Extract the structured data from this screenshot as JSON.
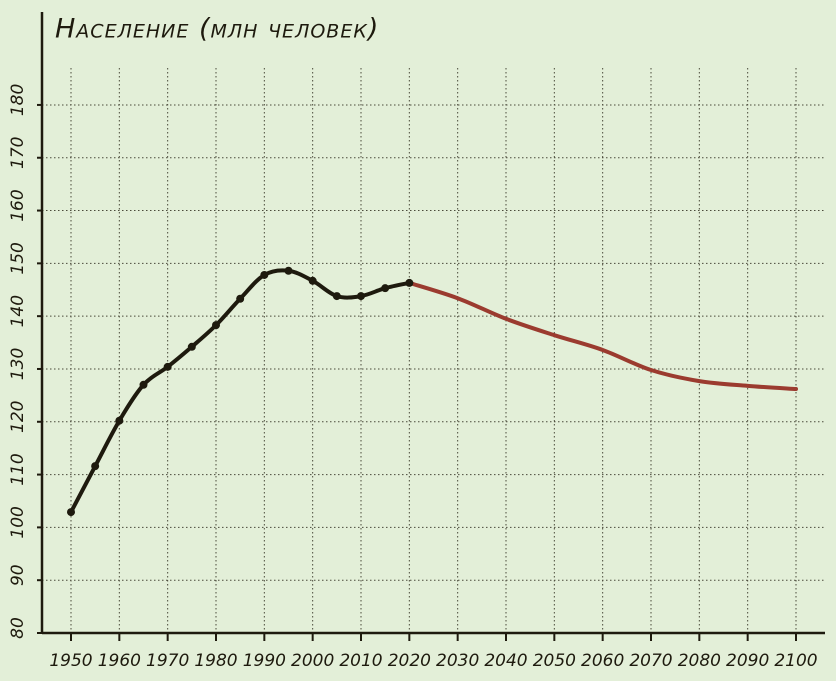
{
  "chart_data": {
    "type": "line",
    "title": "Население (млн человек)",
    "series": [
      {
        "color": "#1e1a0e",
        "markers": true,
        "x": [
          1950,
          1955,
          1960,
          1965,
          1970,
          1975,
          1980,
          1985,
          1990,
          1995,
          2000,
          2005,
          2010,
          2015,
          2020
        ],
        "values": [
          102.9,
          111.6,
          120.2,
          127,
          130.4,
          134.2,
          138.3,
          143.3,
          147.8,
          148.6,
          146.7,
          143.8,
          143.8,
          145.3,
          146.3
        ]
      },
      {
        "color": "#9b3b2f",
        "markers": false,
        "x": [
          2020,
          2030,
          2040,
          2050,
          2060,
          2070,
          2080,
          2090,
          2100
        ],
        "values": [
          146.3,
          143.4,
          139.5,
          136.4,
          133.6,
          129.8,
          127.7,
          126.8,
          126.2
        ]
      }
    ],
    "xlim": [
      1944,
      2106
    ],
    "xticks": [
      1950,
      1960,
      1970,
      1980,
      1990,
      2000,
      2010,
      2020,
      2030,
      2040,
      2050,
      2060,
      2070,
      2080,
      2090,
      2100
    ],
    "ylim": [
      80,
      197.6
    ],
    "yticks": [
      80,
      90,
      100,
      110,
      120,
      130,
      140,
      150,
      160,
      170,
      180
    ],
    "grid": true
  }
}
